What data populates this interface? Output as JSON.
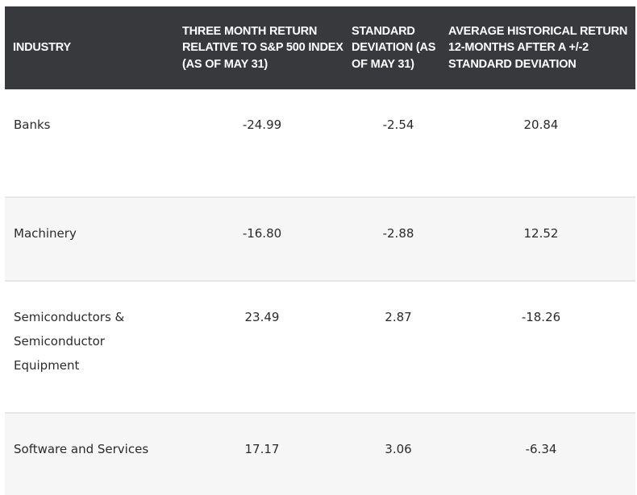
{
  "table": {
    "headers": {
      "industry": "INDUSTRY",
      "three_month": "THREE MONTH RETURN RELATIVE TO S&P 500 INDEX (AS OF MAY 31)",
      "std_dev": "STANDARD DEVIATION (AS OF MAY 31)",
      "avg_return": "AVERAGE HISTORICAL RETURN 12-MONTHS AFTER A +/-2 STANDARD DEVIATION"
    },
    "rows": [
      {
        "industry": "Banks",
        "three_month": "-24.99",
        "std_dev": "-2.54",
        "avg_return": "20.84"
      },
      {
        "industry": "Machinery",
        "three_month": "-16.80",
        "std_dev": "-2.88",
        "avg_return": "12.52"
      },
      {
        "industry": "Semiconductors & Semiconductor Equipment",
        "three_month": "23.49",
        "std_dev": "2.87",
        "avg_return": "-18.26"
      },
      {
        "industry": "Software and Services",
        "three_month": "17.17",
        "std_dev": "3.06",
        "avg_return": "-6.34"
      }
    ]
  },
  "colors": {
    "header_bg": "#37393d",
    "header_text": "#ffffff",
    "body_text": "#2b2b2b",
    "row_alt_bg": "#f6f6f6",
    "row_divider": "#e6e6e6"
  }
}
